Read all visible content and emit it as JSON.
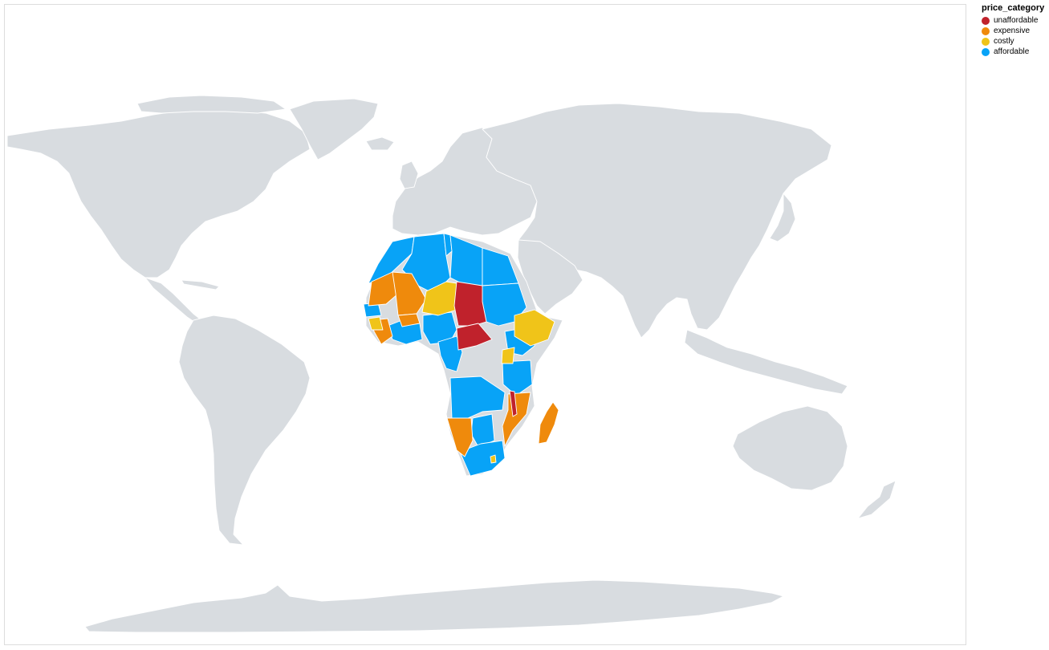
{
  "legend": {
    "title": "price_category",
    "items": [
      {
        "label": "unaffordable",
        "color": "#c0222c"
      },
      {
        "label": "expensive",
        "color": "#ef8a0c"
      },
      {
        "label": "costly",
        "color": "#f0c419"
      },
      {
        "label": "affordable",
        "color": "#08a3f7"
      }
    ]
  },
  "colors": {
    "no_data": "#d8dce0",
    "border": "#ffffff",
    "background": "#ffffff"
  },
  "map": {
    "projection": "equirectangular world map",
    "categories_by_country": {
      "unaffordable": [
        "Chad",
        "Central African Republic",
        "Malawi"
      ],
      "expensive": [
        "Mauritania",
        "Mali",
        "Burkina Faso",
        "Guinea",
        "Sierra Leone",
        "Namibia",
        "Mozambique",
        "Madagascar"
      ],
      "costly": [
        "Niger",
        "Ethiopia",
        "Burundi",
        "Guinea-Bissau",
        "Togo",
        "Eswatini"
      ],
      "affordable": [
        "Morocco",
        "Algeria",
        "Tunisia",
        "Libya",
        "Egypt",
        "Sudan",
        "Senegal",
        "Gambia",
        "Liberia",
        "Cote d'Ivoire",
        "Ghana",
        "Benin",
        "Nigeria",
        "Cameroon",
        "Gabon",
        "Equatorial Guinea",
        "Congo",
        "Uganda",
        "Kenya",
        "Tanzania",
        "Rwanda",
        "Angola",
        "Zambia",
        "Botswana",
        "South Africa",
        "Lesotho",
        "Djibouti"
      ],
      "no_data": [
        "South Sudan",
        "DR Congo",
        "Somalia",
        "Zimbabwe",
        "Eritrea"
      ]
    }
  }
}
